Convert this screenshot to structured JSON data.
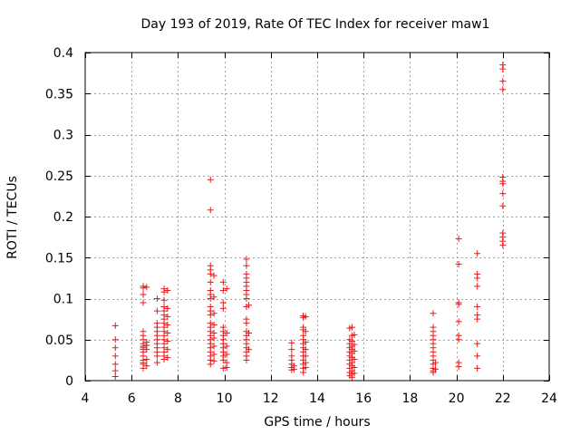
{
  "chart_data": {
    "type": "scatter",
    "title": "Day 193 of 2019, Rate Of TEC Index for receiver maw1",
    "xlabel": "GPS time / hours",
    "ylabel": "ROTI / TECUs",
    "xlim": [
      4,
      24
    ],
    "ylim": [
      0,
      0.4
    ],
    "grid": true,
    "marker": "+",
    "color": "#e41a1c",
    "xticks": [
      {
        "v": 4,
        "label": "4"
      },
      {
        "v": 6,
        "label": "6"
      },
      {
        "v": 8,
        "label": "8"
      },
      {
        "v": 10,
        "label": "10"
      },
      {
        "v": 12,
        "label": "12"
      },
      {
        "v": 14,
        "label": "14"
      },
      {
        "v": 16,
        "label": "16"
      },
      {
        "v": 18,
        "label": "18"
      },
      {
        "v": 20,
        "label": "20"
      },
      {
        "v": 22,
        "label": "22"
      },
      {
        "v": 24,
        "label": "24"
      }
    ],
    "yticks": [
      {
        "v": 0,
        "label": "0"
      },
      {
        "v": 0.05,
        "label": "0.05"
      },
      {
        "v": 0.1,
        "label": "0.1"
      },
      {
        "v": 0.15,
        "label": "0.15"
      },
      {
        "v": 0.2,
        "label": "0.2"
      },
      {
        "v": 0.25,
        "label": "0.25"
      },
      {
        "v": 0.3,
        "label": "0.3"
      },
      {
        "v": 0.35,
        "label": "0.35"
      },
      {
        "v": 0.4,
        "label": "0.4"
      }
    ],
    "groups": [
      {
        "x": 5.3,
        "y": [
          0.067,
          0.05,
          0.04,
          0.03,
          0.02,
          0.012,
          0.005
        ]
      },
      {
        "x": 6.5,
        "y": [
          0.115,
          0.113,
          0.105,
          0.095,
          0.06,
          0.055,
          0.05,
          0.045,
          0.042,
          0.04,
          0.038,
          0.035,
          0.03,
          0.025,
          0.022,
          0.02,
          0.015
        ]
      },
      {
        "x": 6.65,
        "y": [
          0.114,
          0.047,
          0.043,
          0.038,
          0.026,
          0.018
        ]
      },
      {
        "x": 7.1,
        "y": [
          0.1,
          0.085,
          0.07,
          0.065,
          0.06,
          0.055,
          0.05,
          0.045,
          0.04,
          0.035,
          0.03,
          0.022
        ]
      },
      {
        "x": 7.4,
        "y": [
          0.112,
          0.108,
          0.098,
          0.09,
          0.085,
          0.08,
          0.075,
          0.07,
          0.065,
          0.06,
          0.055,
          0.05,
          0.045,
          0.04,
          0.035,
          0.03,
          0.026
        ]
      },
      {
        "x": 7.55,
        "y": [
          0.11,
          0.088,
          0.078,
          0.068,
          0.058,
          0.048,
          0.038,
          0.028
        ]
      },
      {
        "x": 9.4,
        "y": [
          0.245,
          0.208,
          0.14,
          0.135,
          0.13,
          0.12,
          0.11,
          0.105,
          0.1,
          0.09,
          0.085,
          0.08,
          0.07,
          0.065,
          0.06,
          0.055,
          0.05,
          0.045,
          0.04,
          0.035,
          0.03,
          0.025,
          0.02
        ]
      },
      {
        "x": 9.55,
        "y": [
          0.128,
          0.102,
          0.082,
          0.068,
          0.058,
          0.052,
          0.042,
          0.032,
          0.024
        ]
      },
      {
        "x": 9.95,
        "y": [
          0.12,
          0.11,
          0.095,
          0.088,
          0.065,
          0.06,
          0.055,
          0.05,
          0.045,
          0.04,
          0.035,
          0.03,
          0.025,
          0.015
        ]
      },
      {
        "x": 10.1,
        "y": [
          0.112,
          0.058,
          0.042,
          0.032,
          0.022,
          0.016
        ]
      },
      {
        "x": 10.95,
        "y": [
          0.148,
          0.14,
          0.13,
          0.125,
          0.12,
          0.115,
          0.11,
          0.105,
          0.1,
          0.09,
          0.075,
          0.07,
          0.06,
          0.055,
          0.05,
          0.045,
          0.04,
          0.035,
          0.03,
          0.025
        ]
      },
      {
        "x": 11.05,
        "y": [
          0.092,
          0.058,
          0.038
        ]
      },
      {
        "x": 12.9,
        "y": [
          0.046,
          0.038,
          0.03,
          0.025,
          0.02,
          0.016,
          0.013
        ]
      },
      {
        "x": 13.0,
        "y": [
          0.018,
          0.014
        ]
      },
      {
        "x": 13.4,
        "y": [
          0.079,
          0.077,
          0.065,
          0.062,
          0.055,
          0.05,
          0.045,
          0.04,
          0.035,
          0.03,
          0.025,
          0.02,
          0.015,
          0.01
        ]
      },
      {
        "x": 13.5,
        "y": [
          0.078,
          0.06,
          0.047,
          0.038,
          0.03,
          0.022,
          0.016
        ]
      },
      {
        "x": 15.4,
        "y": [
          0.064,
          0.05,
          0.045,
          0.04,
          0.035,
          0.03,
          0.025,
          0.02,
          0.015,
          0.01,
          0.006
        ]
      },
      {
        "x": 15.5,
        "y": [
          0.065,
          0.055,
          0.048,
          0.042,
          0.038,
          0.033,
          0.028,
          0.022,
          0.018,
          0.012,
          0.008,
          0.004
        ]
      },
      {
        "x": 15.6,
        "y": [
          0.056,
          0.044,
          0.036,
          0.026,
          0.016,
          0.009
        ]
      },
      {
        "x": 19.0,
        "y": [
          0.082,
          0.065,
          0.06,
          0.055,
          0.05,
          0.045,
          0.04,
          0.035,
          0.03,
          0.025,
          0.02,
          0.015,
          0.012,
          0.01
        ]
      },
      {
        "x": 19.1,
        "y": [
          0.022,
          0.014
        ]
      },
      {
        "x": 20.1,
        "y": [
          0.173,
          0.142,
          0.095,
          0.093,
          0.072,
          0.055,
          0.05,
          0.022,
          0.017
        ]
      },
      {
        "x": 20.9,
        "y": [
          0.155,
          0.13,
          0.125,
          0.115,
          0.09,
          0.08,
          0.075,
          0.045,
          0.03,
          0.015
        ]
      },
      {
        "x": 22.0,
        "y": [
          0.385,
          0.38,
          0.365,
          0.355,
          0.248,
          0.243,
          0.24,
          0.228,
          0.213,
          0.18,
          0.175,
          0.17,
          0.165
        ]
      }
    ]
  }
}
